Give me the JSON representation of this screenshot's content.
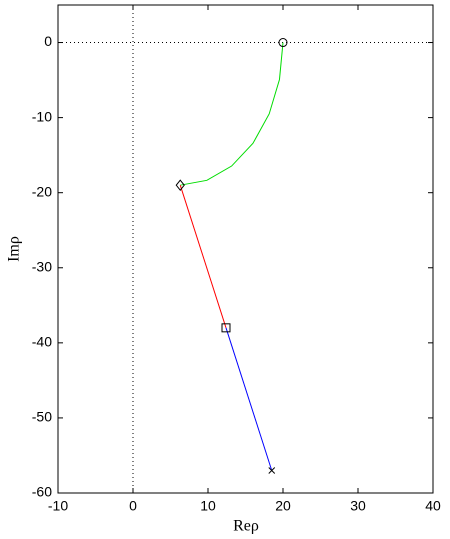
{
  "chart_data": {
    "type": "line",
    "xlabel": "Reρ",
    "ylabel": "Imρ",
    "xlim": [
      -10,
      40
    ],
    "ylim": [
      -60,
      5
    ],
    "xticks": [
      -10,
      0,
      10,
      20,
      30,
      40
    ],
    "yticks": [
      -60,
      -50,
      -40,
      -30,
      -20,
      -10,
      0
    ],
    "zero_lines": true,
    "series": [
      {
        "color": "#00dd00",
        "x": [
          20,
          19.53,
          18.16,
          15.99,
          13.15,
          9.85,
          6.3
        ],
        "y": [
          0,
          -4.92,
          -9.5,
          -13.43,
          -16.45,
          -18.35,
          -19
        ]
      },
      {
        "color": "#ff0000",
        "x": [
          6.3,
          12.4
        ],
        "y": [
          -19,
          -38
        ]
      },
      {
        "color": "#0000ff",
        "x": [
          12.4,
          18.5
        ],
        "y": [
          -38,
          -57
        ]
      }
    ],
    "markers": [
      {
        "x": 20,
        "y": 0,
        "shape": "circle"
      },
      {
        "x": 6.3,
        "y": -19,
        "shape": "diamond"
      },
      {
        "x": 12.4,
        "y": -38,
        "shape": "square"
      },
      {
        "x": 18.5,
        "y": -57,
        "shape": "x"
      }
    ]
  }
}
